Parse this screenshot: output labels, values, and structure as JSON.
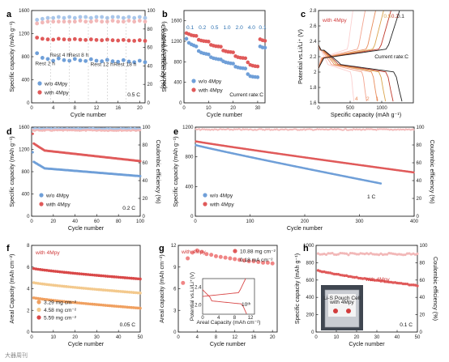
{
  "colors": {
    "blue": "#6f9fd8",
    "red": "#e05a5a",
    "pink": "#f2b8b8",
    "lblue": "#a9c6ea",
    "orange": "#f0a060",
    "sand": "#f3c98d",
    "dred": "#d94848",
    "grid": "#cccccc"
  },
  "watermark": "大器周刊",
  "chart_data": [
    {
      "id": "a",
      "panel_label": "a",
      "type": "scatter",
      "xlabel": "Cycle number",
      "ylabel": "Specific capacity (mAh g⁻¹)",
      "y2label": "Coulombic efficiency (%)",
      "xlim": [
        0,
        21
      ],
      "ylim": [
        0,
        1600
      ],
      "y2lim": [
        0,
        100
      ],
      "xticks": [
        0,
        4,
        8,
        12,
        16,
        20
      ],
      "yticks": [
        0,
        400,
        800,
        1200,
        1600
      ],
      "y2ticks": [
        0,
        20,
        40,
        60,
        80,
        100
      ],
      "rest_labels": [
        {
          "text": "Rest 2 h",
          "x": 2.5,
          "y": 650
        },
        {
          "text": "Rest 4 h",
          "x": 5.2,
          "y": 800
        },
        {
          "text": "Rest 8 h",
          "x": 8.7,
          "y": 800
        },
        {
          "text": "Rest 12 h",
          "x": 13.0,
          "y": 640
        },
        {
          "text": "Rest 18 h",
          "x": 17.3,
          "y": 640
        }
      ],
      "rate_label": "0.5 C",
      "legend": [
        "w/o 4Mpy",
        "with 4Mpy"
      ],
      "series": [
        {
          "name": "w/o 4Mpy",
          "role": "capacity",
          "color": "blue",
          "x": [
            1,
            2,
            3,
            4,
            5,
            6,
            7,
            8,
            9,
            10,
            11,
            12,
            13,
            14,
            15,
            16,
            17,
            18,
            19,
            20,
            21
          ],
          "y": [
            860,
            780,
            760,
            730,
            770,
            740,
            730,
            760,
            735,
            725,
            755,
            730,
            720,
            745,
            720,
            712,
            740,
            715,
            705,
            730,
            705
          ]
        },
        {
          "name": "with 4Mpy",
          "role": "capacity",
          "color": "red",
          "x": [
            1,
            2,
            3,
            4,
            5,
            6,
            7,
            8,
            9,
            10,
            11,
            12,
            13,
            14,
            15,
            16,
            17,
            18,
            19,
            20,
            21
          ],
          "y": [
            1130,
            1110,
            1100,
            1095,
            1110,
            1100,
            1095,
            1105,
            1095,
            1090,
            1100,
            1090,
            1085,
            1095,
            1085,
            1080,
            1090,
            1080,
            1075,
            1085,
            1075
          ]
        },
        {
          "name": "w/o 4Mpy CE",
          "role": "ce",
          "color": "lblue",
          "x": [
            1,
            2,
            3,
            4,
            5,
            6,
            7,
            8,
            9,
            10,
            11,
            12,
            13,
            14,
            15,
            16,
            17,
            18,
            19,
            20,
            21
          ],
          "y": [
            90,
            91,
            92,
            92,
            93,
            92,
            93,
            92,
            93,
            93,
            92,
            93,
            93,
            92,
            93,
            93,
            92,
            93,
            92,
            93,
            92
          ]
        },
        {
          "name": "with 4Mpy CE",
          "role": "ce",
          "color": "pink",
          "x": [
            1,
            2,
            3,
            4,
            5,
            6,
            7,
            8,
            9,
            10,
            11,
            12,
            13,
            14,
            15,
            16,
            17,
            18,
            19,
            20,
            21
          ],
          "y": [
            86,
            87,
            88,
            88,
            88,
            88,
            88,
            88,
            89,
            88,
            88,
            89,
            88,
            88,
            89,
            88,
            88,
            89,
            88,
            89,
            88
          ]
        }
      ]
    },
    {
      "id": "b",
      "panel_label": "b",
      "type": "scatter",
      "xlabel": "Cycle number",
      "ylabel": "Specific capacity (mAh g⁻¹)",
      "xlim": [
        0,
        33
      ],
      "ylim": [
        0,
        1800
      ],
      "xticks": [
        0,
        10,
        20,
        30
      ],
      "yticks": [
        0,
        400,
        800,
        1200,
        1600
      ],
      "rate_labels": [
        {
          "text": "0.1",
          "x": 2.5
        },
        {
          "text": "0.2",
          "x": 7.5
        },
        {
          "text": "0.5",
          "x": 12.5
        },
        {
          "text": "1.0",
          "x": 17.5
        },
        {
          "text": "2.0",
          "x": 22.5
        },
        {
          "text": "4.0",
          "x": 27.5
        },
        {
          "text": "0.1",
          "x": 32
        }
      ],
      "current_label": "Current rate:C",
      "legend": [
        "w/o 4Mpy",
        "with 4Mpy"
      ],
      "series": [
        {
          "name": "w/o 4Mpy",
          "color": "blue",
          "x": [
            1,
            2,
            3,
            4,
            5,
            6,
            7,
            8,
            9,
            10,
            11,
            12,
            13,
            14,
            15,
            16,
            17,
            18,
            19,
            20,
            21,
            22,
            23,
            24,
            25,
            26,
            27,
            28,
            29,
            30,
            31,
            32,
            33
          ],
          "y": [
            1250,
            1170,
            1140,
            1120,
            1100,
            1010,
            980,
            965,
            955,
            945,
            890,
            870,
            860,
            850,
            845,
            810,
            790,
            780,
            770,
            765,
            705,
            690,
            680,
            675,
            670,
            560,
            520,
            510,
            505,
            500,
            1100,
            1080,
            1075
          ]
        },
        {
          "name": "with 4Mpy",
          "color": "red",
          "x": [
            1,
            2,
            3,
            4,
            5,
            6,
            7,
            8,
            9,
            10,
            11,
            12,
            13,
            14,
            15,
            16,
            17,
            18,
            19,
            20,
            21,
            22,
            23,
            24,
            25,
            26,
            27,
            28,
            29,
            30,
            31,
            32,
            33
          ],
          "y": [
            1360,
            1340,
            1320,
            1310,
            1305,
            1230,
            1215,
            1205,
            1200,
            1195,
            1130,
            1115,
            1105,
            1100,
            1095,
            1020,
            1005,
            995,
            990,
            985,
            910,
            890,
            880,
            875,
            870,
            790,
            740,
            725,
            715,
            710,
            1240,
            1220,
            1210
          ]
        }
      ]
    },
    {
      "id": "c",
      "panel_label": "c",
      "type": "line",
      "xlabel": "Specific capacity (mAh g⁻¹)",
      "ylabel": "Potential vs.Li/Li⁺ (V)",
      "xlim": [
        0,
        1500
      ],
      "ylim": [
        1.6,
        2.8
      ],
      "xticks": [
        0,
        500,
        1000
      ],
      "yticks": [
        1.6,
        1.8,
        2.0,
        2.2,
        2.4,
        2.6,
        2.8
      ],
      "title_text": "with 4Mpy",
      "current_label": "Current rate:C",
      "rate_labels_top": [
        "0.5",
        "0.2",
        "0.1"
      ],
      "rate_labels_bottom": [
        "4",
        "2",
        "1"
      ],
      "curves": [
        {
          "rate": "4",
          "color": "#fbd0d0",
          "cap": 560
        },
        {
          "rate": "2",
          "color": "#f3a48e",
          "cap": 760
        },
        {
          "rate": "1",
          "color": "#e88b5a",
          "cap": 930
        },
        {
          "rate": "0.5",
          "color": "#d9a34a",
          "cap": 1060
        },
        {
          "rate": "0.2",
          "color": "#c0392b",
          "cap": 1180
        },
        {
          "rate": "0.1",
          "color": "#222222",
          "cap": 1320
        }
      ]
    },
    {
      "id": "d",
      "panel_label": "d",
      "type": "scatter",
      "xlabel": "Cycle number",
      "ylabel": "Specific capacity (mAh g⁻¹)",
      "y2label": "Coulombic efficiency (%)",
      "xlim": [
        0,
        100
      ],
      "ylim": [
        0,
        1600
      ],
      "y2lim": [
        0,
        100
      ],
      "xticks": [
        0,
        20,
        40,
        60,
        80,
        100
      ],
      "yticks": [
        0,
        400,
        800,
        1200,
        1600
      ],
      "y2ticks": [
        0,
        20,
        40,
        60,
        80,
        100
      ],
      "rate_label": "0.2 C",
      "legend": [
        "w/o 4Mpy",
        "with 4Mpy"
      ],
      "series": [
        {
          "name": "w/o 4Mpy",
          "role": "capacity",
          "color": "blue",
          "start": 1000,
          "mid": 860,
          "end": 720
        },
        {
          "name": "with 4Mpy",
          "role": "capacity",
          "color": "red",
          "start": 1330,
          "mid": 1180,
          "end": 990
        },
        {
          "name": "w/o 4Mpy CE",
          "role": "ce",
          "color": "lblue",
          "level": 99
        },
        {
          "name": "with 4Mpy CE",
          "role": "ce",
          "color": "pink",
          "level": 97
        }
      ]
    },
    {
      "id": "e",
      "panel_label": "e",
      "type": "scatter",
      "xlabel": "Cycle number",
      "ylabel": "Specific capacity (mAh g⁻¹)",
      "y2label": "Coulombic efficiency (%)",
      "xlim": [
        0,
        400
      ],
      "ylim": [
        0,
        1200
      ],
      "y2lim": [
        0,
        100
      ],
      "xticks": [
        0,
        100,
        200,
        300,
        400
      ],
      "yticks": [
        0,
        400,
        800,
        1200
      ],
      "y2ticks": [
        0,
        20,
        40,
        60,
        80,
        100
      ],
      "rate_label": "1 C",
      "legend": [
        "w/o 4Mpy",
        "with 4Mpy"
      ],
      "series": [
        {
          "name": "w/o 4Mpy",
          "role": "capacity",
          "color": "blue",
          "start": 960,
          "end": 440,
          "last": 330
        },
        {
          "name": "with 4Mpy",
          "role": "capacity",
          "color": "red",
          "start": 1010,
          "end": 590,
          "last": 400
        },
        {
          "name": "CE",
          "role": "ce",
          "color": "pink",
          "level": 98
        }
      ]
    },
    {
      "id": "f",
      "panel_label": "f",
      "type": "scatter",
      "xlabel": "Cycle number",
      "ylabel": "Areal Capacity (mAh cm⁻²)",
      "xlim": [
        0,
        50
      ],
      "ylim": [
        0,
        8
      ],
      "xticks": [
        0,
        10,
        20,
        30,
        40,
        50
      ],
      "yticks": [
        0,
        2,
        4,
        6,
        8
      ],
      "title_text": "with 4Mpy",
      "rate_label": "0.05 C",
      "legend": [
        "3.29 mg cm⁻²",
        "4.58 mg cm⁻²",
        "5.59 mg cm⁻²"
      ],
      "series": [
        {
          "name": "3.29 mg cm⁻²",
          "color": "orange",
          "start": 3.2,
          "end": 2.2
        },
        {
          "name": "4.58 mg cm⁻²",
          "color": "sand",
          "start": 4.6,
          "end": 3.6
        },
        {
          "name": "5.59 mg cm⁻²",
          "color": "dred",
          "start": 5.9,
          "end": 4.9
        }
      ]
    },
    {
      "id": "g",
      "panel_label": "g",
      "type": "scatter",
      "xlabel": "Cycle number",
      "ylabel": "Areal capacity (mAh cm⁻²)",
      "xlim": [
        0,
        21
      ],
      "ylim": [
        0,
        12
      ],
      "xticks": [
        0,
        4,
        8,
        12,
        16,
        20
      ],
      "yticks": [
        0,
        3,
        6,
        9,
        12
      ],
      "title_text": "with 4Mpy",
      "legend": [
        "10.88 mg cm⁻²"
      ],
      "current_text": "0.18 mA cm⁻²",
      "series": [
        {
          "name": "10.88 mg cm⁻²",
          "color": "red",
          "x": [
            1,
            2,
            3,
            4,
            5,
            6,
            7,
            8,
            9,
            10,
            11,
            12,
            13,
            14,
            15,
            16,
            17,
            18,
            19,
            20
          ],
          "y": [
            6.8,
            10.2,
            11.0,
            11.3,
            11.1,
            10.8,
            10.7,
            10.5,
            10.4,
            10.3,
            10.2,
            10.1,
            10.0,
            9.9,
            9.8,
            9.8,
            9.7,
            9.6,
            9.6,
            9.5
          ]
        }
      ],
      "inset": {
        "xlabel": "Areal Capacity (mAh cm⁻²)",
        "ylabel": "Potential vs.Li/Li⁺(V)",
        "xticks": [
          0,
          4,
          8,
          12
        ],
        "yticks": [
          2.0,
          2.4
        ],
        "label": "10ᵗʰ"
      }
    },
    {
      "id": "h",
      "panel_label": "h",
      "type": "scatter",
      "xlabel": "Cycle number",
      "ylabel": "Specific capacity (mAh g⁻¹)",
      "y2label": "Coulombic efficiency (%)",
      "xlim": [
        0,
        50
      ],
      "ylim": [
        0,
        1000
      ],
      "y2lim": [
        0,
        100
      ],
      "xticks": [
        0,
        10,
        20,
        30,
        40,
        50
      ],
      "yticks": [
        0,
        200,
        400,
        600,
        800,
        1000
      ],
      "y2ticks": [
        0,
        20,
        40,
        60,
        80,
        100
      ],
      "series_label": "with 4Mpy",
      "rate_label": "0.1 C",
      "pouch_text": [
        "Li-S Pouch Cell",
        "with 4Mpy"
      ],
      "series": [
        {
          "name": "with 4Mpy",
          "role": "capacity",
          "color": "red",
          "start": 720,
          "end": 540
        },
        {
          "name": "CE",
          "role": "ce",
          "color": "pink",
          "level": 91
        }
      ]
    }
  ]
}
